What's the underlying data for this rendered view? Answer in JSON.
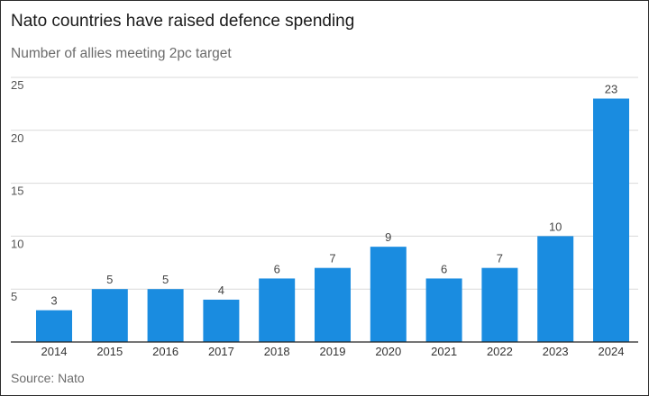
{
  "chart_data": {
    "type": "bar",
    "title": "Nato countries have raised defence spending",
    "subtitle": "Number of allies meeting 2pc target",
    "source": "Source: Nato",
    "categories": [
      "2014",
      "2015",
      "2016",
      "2017",
      "2018",
      "2019",
      "2020",
      "2021",
      "2022",
      "2023",
      "2024"
    ],
    "values": [
      3,
      5,
      5,
      4,
      6,
      7,
      9,
      6,
      7,
      10,
      23
    ],
    "data_labels": [
      "3",
      "5",
      "5",
      "4",
      "6",
      "7",
      "9",
      "6",
      "7",
      "10",
      "23"
    ],
    "yticks": [
      5,
      10,
      15,
      20,
      25
    ],
    "ytick_labels": [
      "5",
      "10",
      "15",
      "20",
      "25"
    ],
    "ylim": [
      0,
      25
    ],
    "grid": true,
    "bar_color": "#1a8ce0"
  }
}
